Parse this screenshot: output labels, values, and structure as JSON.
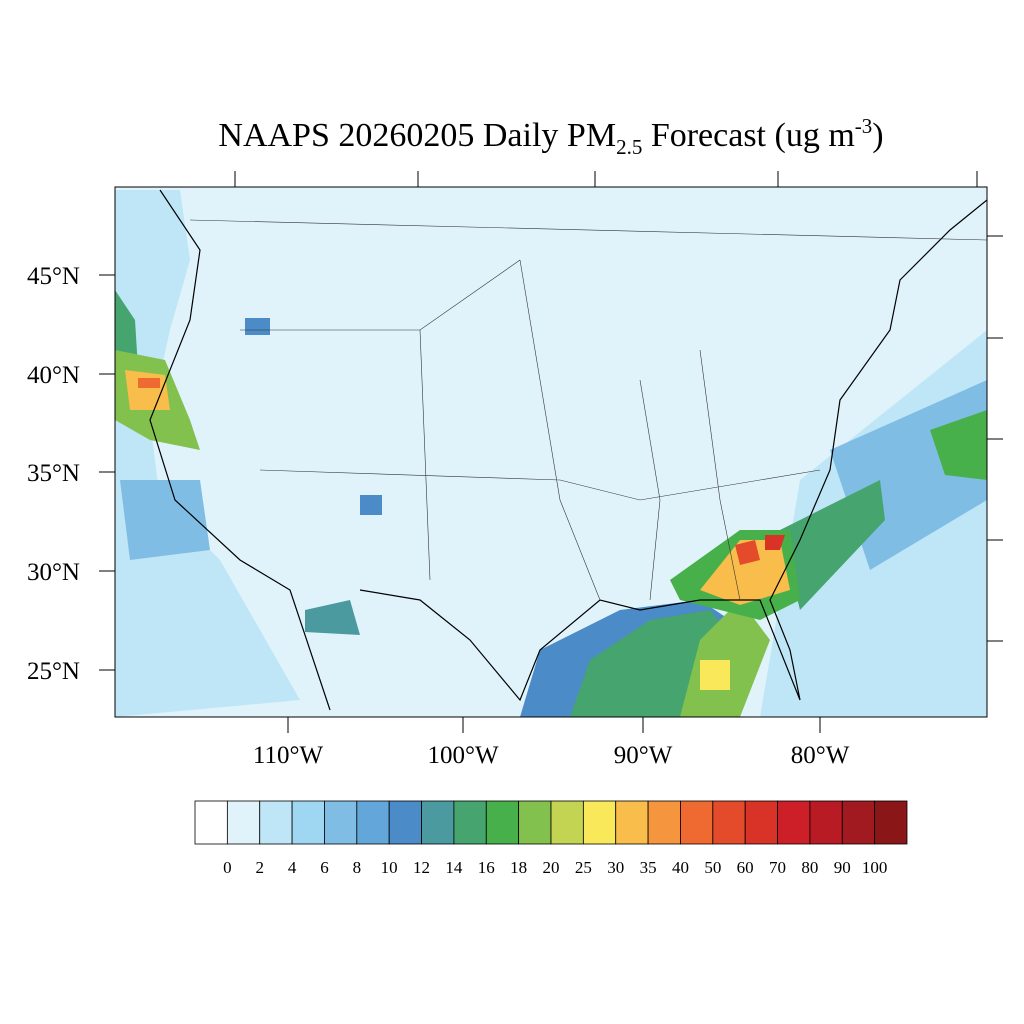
{
  "header": {
    "title_main": "NAAPS 20260205 Daily PM",
    "title_sub": "2.5",
    "title_rest": " Forecast (ug m",
    "title_sup": "-3",
    "title_end": ")"
  },
  "map": {
    "lat_labels": [
      "45°N",
      "40°N",
      "35°N",
      "30°N",
      "25°N"
    ],
    "lon_labels": [
      "110°W",
      "100°W",
      "90°W",
      "80°W"
    ]
  },
  "colorbar": {
    "colors": [
      "#ffffff",
      "#e0f3fb",
      "#bfe6f7",
      "#9fd7f3",
      "#7fbde4",
      "#63a6da",
      "#4a8bc8",
      "#4a9aa0",
      "#46a56e",
      "#48b04a",
      "#82c14e",
      "#c3d352",
      "#f8e85a",
      "#f8bd4a",
      "#f5963e",
      "#ee6a30",
      "#e34b2a",
      "#d93226",
      "#cc1f28",
      "#b81b24",
      "#a01a20",
      "#8a1618"
    ],
    "labels": [
      0,
      2,
      4,
      6,
      8,
      10,
      12,
      14,
      16,
      18,
      20,
      25,
      30,
      35,
      40,
      50,
      60,
      70,
      80,
      90,
      100
    ]
  }
}
